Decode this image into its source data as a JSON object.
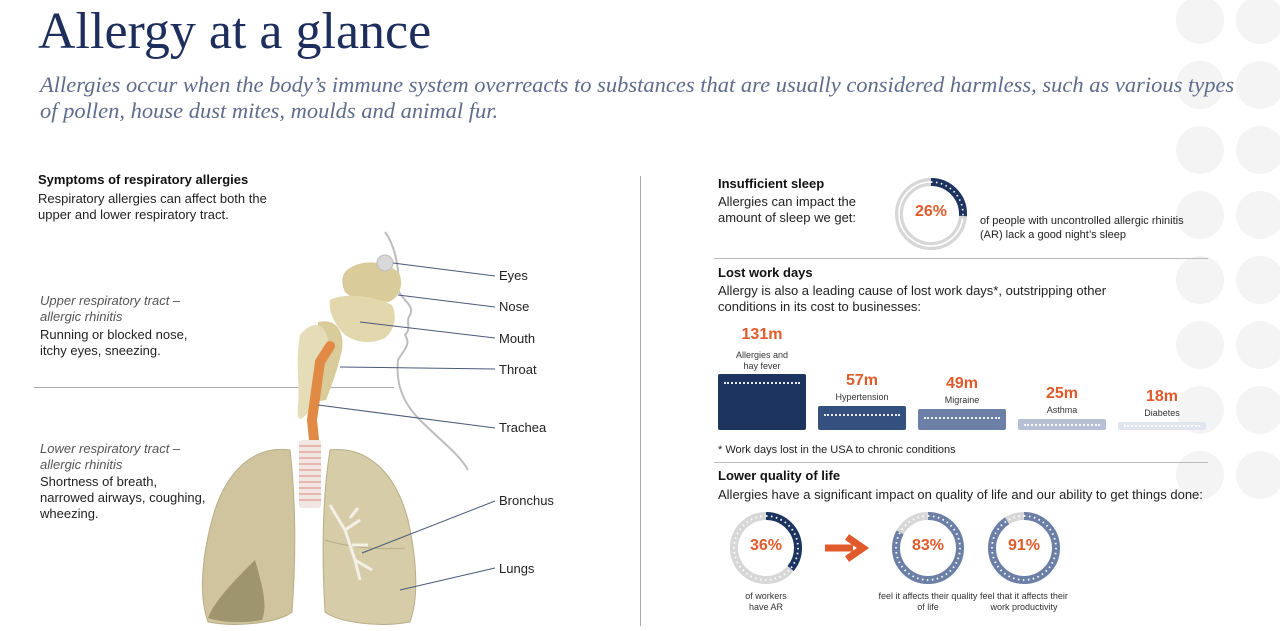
{
  "title": "Allergy at a glance",
  "subtitle": "Allergies occur when the body’s immune system overreacts to substances that are usually considered harmless, such as various types of pollen, house dust mites, moulds and animal fur.",
  "colors": {
    "navy": "#1d3461",
    "orange": "#e05a2b",
    "gray": "#d7d7d7",
    "text": "#222222"
  },
  "left": {
    "heading": "Symptoms of respiratory allergies",
    "intro": "Respiratory allergies can affect both the upper and lower respiratory tract.",
    "upper_title": "Upper respiratory tract – allergic rhinitis",
    "upper_desc": "Running or blocked nose, itchy eyes, sneezing.",
    "lower_title": "Lower respiratory tract – allergic rhinitis",
    "lower_desc": "Shortness of breath, narrowed airways, coughing, wheezing.",
    "labels": {
      "eyes": "Eyes",
      "nose": "Nose",
      "mouth": "Mouth",
      "throat": "Throat",
      "trachea": "Trachea",
      "bronchus": "Bronchus",
      "lungs": "Lungs"
    }
  },
  "sleep": {
    "heading": "Insufficient sleep",
    "desc": "Allergies can impact the amount of sleep we get:",
    "percent": "26%",
    "value": 0.26,
    "caption": "of people with uncontrolled allergic rhinitis (AR) lack a good night’s sleep"
  },
  "work": {
    "heading": "Lost work days",
    "desc": "Allergy is also a leading cause of lost work days*, outstripping other conditions in its cost to businesses:",
    "footnote": "* Work days lost in the USA to chronic conditions",
    "bars": [
      {
        "value": "131m",
        "label": "Allergies and hay fever",
        "amount": 131,
        "color": "#1d3461"
      },
      {
        "value": "57m",
        "label": "Hypertension",
        "amount": 57,
        "color": "#33507f"
      },
      {
        "value": "49m",
        "label": "Migraine",
        "amount": 49,
        "color": "#6c7fa6"
      },
      {
        "value": "25m",
        "label": "Asthma",
        "amount": 25,
        "color": "#b7c0d6"
      },
      {
        "value": "18m",
        "label": "Diabetes",
        "amount": 18,
        "color": "#e1e5ee"
      }
    ]
  },
  "quality": {
    "heading": "Lower quality of life",
    "desc": "Allergies have a significant impact on quality of life and our ability to get things done:",
    "items": [
      {
        "percent": "36%",
        "value": 0.36,
        "caption": "of workers have AR"
      },
      {
        "percent": "83%",
        "value": 0.83,
        "caption": "feel it affects their quality of life"
      },
      {
        "percent": "91%",
        "value": 0.91,
        "caption": "feel that it affects their work productivity"
      }
    ]
  }
}
